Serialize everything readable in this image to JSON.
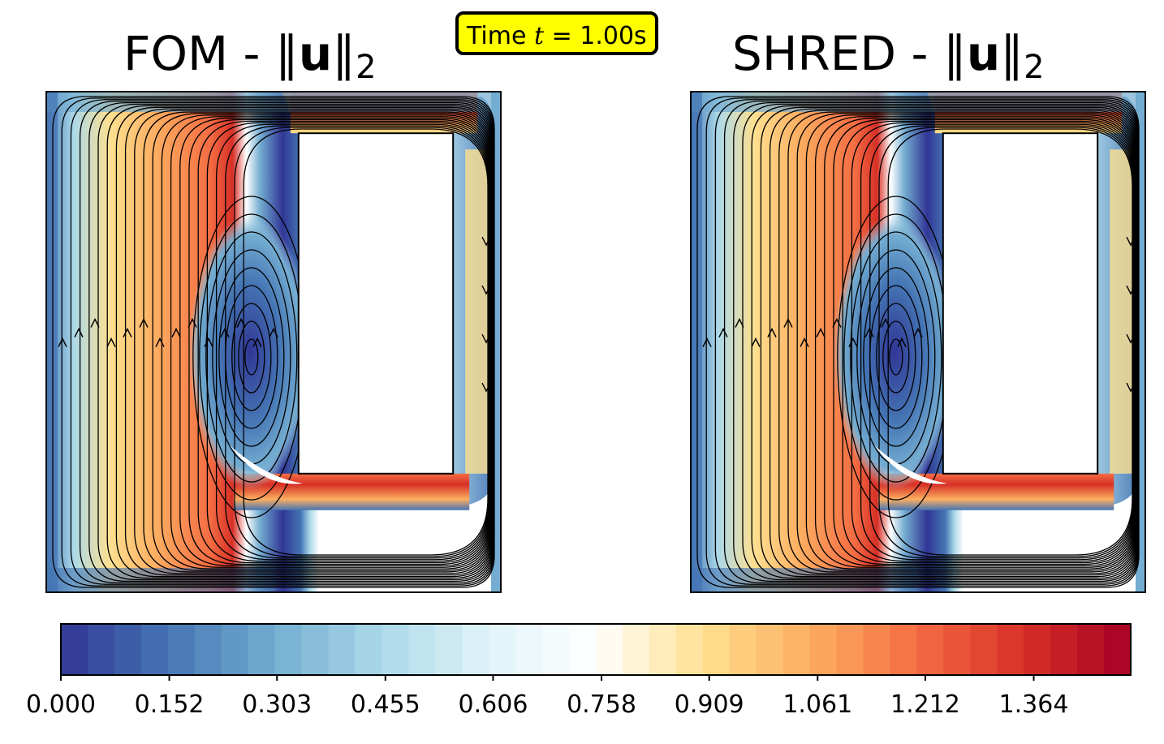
{
  "time_badge": {
    "prefix": "Time ",
    "var": "t",
    "value": " = 1.00s"
  },
  "panels": [
    {
      "id": "fom",
      "title_prefix": "FOM - ",
      "title_var": "u",
      "title_sub": "2"
    },
    {
      "id": "shred",
      "title_prefix": "SHRED - ",
      "title_var": "u",
      "title_sub": "2"
    }
  ],
  "chart_data": {
    "type": "heatmap",
    "colormap": "RdYlBu_r",
    "colorbar": {
      "ticks": [
        "0.000",
        "0.152",
        "0.303",
        "0.455",
        "0.606",
        "0.758",
        "0.909",
        "1.061",
        "1.212",
        "1.364"
      ],
      "range": [
        0.0,
        1.5
      ],
      "levels": 40
    },
    "colors": [
      "#313695",
      "#4575b4",
      "#74add1",
      "#abd9e9",
      "#e0f3f8",
      "#ffffff",
      "#fee090",
      "#fdae61",
      "#f46d43",
      "#d73027",
      "#a50026"
    ]
  }
}
